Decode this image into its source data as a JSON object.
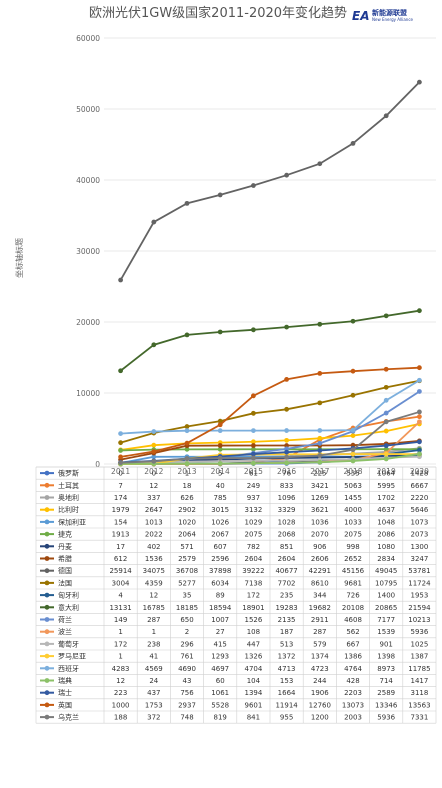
{
  "logo": {
    "mark": "EA",
    "brand": "新能源联盟",
    "sub": "New Energy Alliance"
  },
  "chart_data": {
    "type": "line",
    "title": "欧洲光伏1GW级国家2011-2020年变化趋势",
    "xlabel": "",
    "ylabel": "坐标轴标题",
    "ylim": [
      0,
      60000
    ],
    "yticks": [
      0,
      10000,
      20000,
      30000,
      40000,
      50000,
      60000
    ],
    "grid": true,
    "legend": "data-table-bottom",
    "categories": [
      "2011",
      "2012",
      "2013",
      "2014",
      "2015",
      "2016",
      "2017",
      "2018",
      "2019",
      "2020"
    ],
    "series": [
      {
        "name": "俄罗斯",
        "color": "#4472c4",
        "values": [
          0,
          0,
          1,
          5,
          61,
          76,
          225,
          535,
          1064,
          1428
        ]
      },
      {
        "name": "土耳其",
        "color": "#ed7d31",
        "values": [
          7,
          12,
          18,
          40,
          249,
          833,
          3421,
          5063,
          5995,
          6667
        ]
      },
      {
        "name": "奥地利",
        "color": "#a5a5a5",
        "values": [
          174,
          337,
          626,
          785,
          937,
          1096,
          1269,
          1455,
          1702,
          2220
        ]
      },
      {
        "name": "比利时",
        "color": "#ffc000",
        "values": [
          1979,
          2647,
          2902,
          3015,
          3132,
          3329,
          3621,
          4000,
          4637,
          5646
        ]
      },
      {
        "name": "保加利亚",
        "color": "#5b9bd5",
        "values": [
          154,
          1013,
          1020,
          1026,
          1029,
          1028,
          1036,
          1033,
          1048,
          1073
        ]
      },
      {
        "name": "捷克",
        "color": "#70ad47",
        "values": [
          1913,
          2022,
          2064,
          2067,
          2075,
          2068,
          2070,
          2075,
          2086,
          2073
        ]
      },
      {
        "name": "丹麦",
        "color": "#264478",
        "values": [
          17,
          402,
          571,
          607,
          782,
          851,
          906,
          998,
          1080,
          1300
        ]
      },
      {
        "name": "希腊",
        "color": "#9e480e",
        "values": [
          612,
          1536,
          2579,
          2596,
          2604,
          2604,
          2606,
          2652,
          2834,
          3247
        ]
      },
      {
        "name": "德国",
        "color": "#636363",
        "values": [
          25914,
          34075,
          36708,
          37898,
          39222,
          40677,
          42291,
          45156,
          49045,
          53781
        ]
      },
      {
        "name": "法国",
        "color": "#997300",
        "values": [
          3004,
          4359,
          5277,
          6034,
          7138,
          7702,
          8610,
          9681,
          10795,
          11724
        ]
      },
      {
        "name": "匈牙利",
        "color": "#255e91",
        "values": [
          4,
          12,
          35,
          89,
          172,
          235,
          344,
          726,
          1400,
          1953
        ]
      },
      {
        "name": "意大利",
        "color": "#43682b",
        "values": [
          13131,
          16785,
          18185,
          18594,
          18901,
          19283,
          19682,
          20108,
          20865,
          21594
        ]
      },
      {
        "name": "荷兰",
        "color": "#698ed0",
        "values": [
          149,
          287,
          650,
          1007,
          1526,
          2135,
          2911,
          4608,
          7177,
          10213
        ]
      },
      {
        "name": "波兰",
        "color": "#f1975a",
        "values": [
          1,
          1,
          2,
          27,
          108,
          187,
          287,
          562,
          1539,
          5936
        ]
      },
      {
        "name": "葡萄牙",
        "color": "#b7b7b7",
        "values": [
          172,
          238,
          296,
          415,
          447,
          513,
          579,
          667,
          901,
          1025
        ]
      },
      {
        "name": "罗马尼亚",
        "color": "#ffcd33",
        "values": [
          1,
          41,
          761,
          1293,
          1326,
          1372,
          1374,
          1386,
          1398,
          1387
        ]
      },
      {
        "name": "西班牙",
        "color": "#7cafdd",
        "values": [
          4283,
          4569,
          4690,
          4697,
          4704,
          4713,
          4723,
          4764,
          8973,
          11785
        ]
      },
      {
        "name": "瑞典",
        "color": "#8cc168",
        "values": [
          12,
          24,
          43,
          60,
          104,
          153,
          244,
          428,
          714,
          1417
        ]
      },
      {
        "name": "瑞士",
        "color": "#335aa1",
        "values": [
          223,
          437,
          756,
          1061,
          1394,
          1664,
          1906,
          2203,
          2589,
          3118
        ]
      },
      {
        "name": "英国",
        "color": "#c55a11",
        "values": [
          1000,
          1753,
          2937,
          5528,
          9601,
          11914,
          12760,
          13073,
          13346,
          13563
        ]
      },
      {
        "name": "乌克兰",
        "color": "#7b7b7b",
        "values": [
          188,
          372,
          748,
          819,
          841,
          955,
          1200,
          2003,
          5936,
          7331
        ]
      }
    ]
  }
}
